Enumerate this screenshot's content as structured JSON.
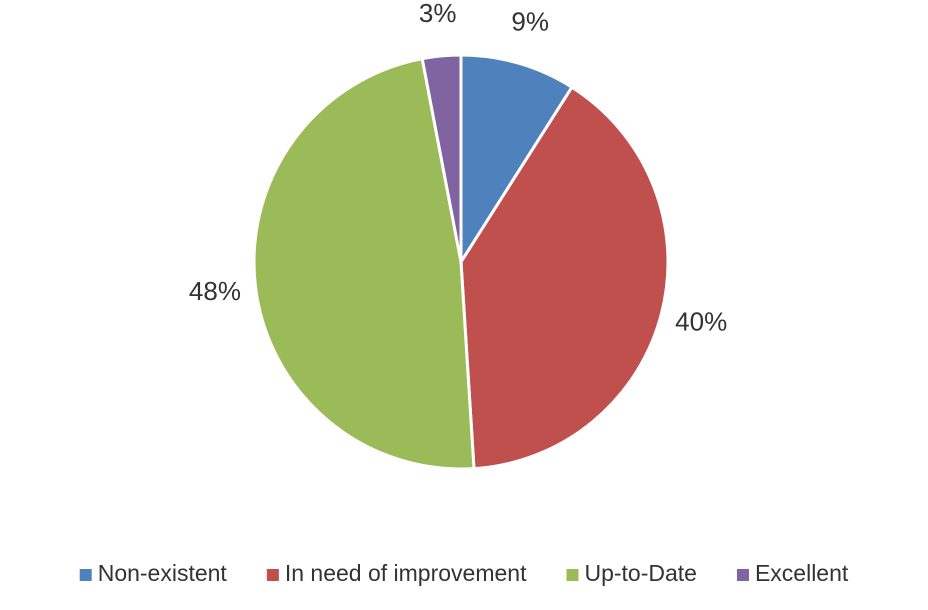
{
  "chart_data": {
    "type": "pie",
    "categories": [
      "Non-existent",
      "In need of improvement",
      "Up-to-Date",
      "Excellent"
    ],
    "values": [
      9,
      40,
      48,
      3
    ],
    "value_labels": [
      "9%",
      "40%",
      "48%",
      "3%"
    ],
    "colors": [
      "#4f81bd",
      "#c0504d",
      "#9bbb59",
      "#8064a2"
    ],
    "legend": "bottom"
  }
}
